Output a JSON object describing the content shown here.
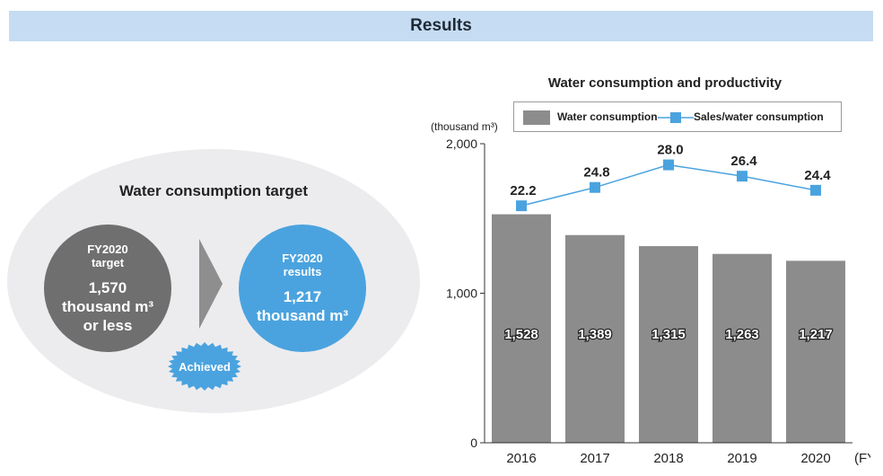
{
  "banner": {
    "title": "Results"
  },
  "target": {
    "title": "Water consumption target",
    "left_circle": {
      "label_line1": "FY2020",
      "label_line2": "target",
      "value_line1": "1,570",
      "value_line2": "thousand m³",
      "value_line3": "or less"
    },
    "right_circle": {
      "label_line1": "FY2020",
      "label_line2": "results",
      "value_line1": "1,217",
      "value_line2": "thousand m³"
    },
    "badge": "Achieved",
    "colors": {
      "gray_circle": "#6f6f6f",
      "blue_circle": "#4aa3df",
      "badge": "#4aa3df",
      "ellipse": "#ececee"
    }
  },
  "chart_data": {
    "type": "bar",
    "title": "Water consumption and productivity",
    "ylabel": "(thousand m³)",
    "xunit": "(FY)",
    "categories": [
      "2016",
      "2017",
      "2018",
      "2019",
      "2020"
    ],
    "ylim": [
      0,
      2000
    ],
    "yticks": [
      0,
      1000,
      2000
    ],
    "ytick_labels": [
      "0",
      "1,000",
      "2,000"
    ],
    "series": [
      {
        "name": "Water consumption",
        "kind": "bar",
        "color": "#8c8c8c",
        "values": [
          1528,
          1389,
          1315,
          1263,
          1217
        ],
        "labels": [
          "1,528",
          "1,389",
          "1,315",
          "1,263",
          "1,217"
        ]
      },
      {
        "name": "Sales/water consumption",
        "kind": "line",
        "color": "#4aa3df",
        "values": [
          22.2,
          24.8,
          28.0,
          26.4,
          24.4
        ],
        "labels": [
          "22.2",
          "24.8",
          "28.0",
          "26.4",
          "24.4"
        ]
      }
    ],
    "legend_placement": "top"
  }
}
